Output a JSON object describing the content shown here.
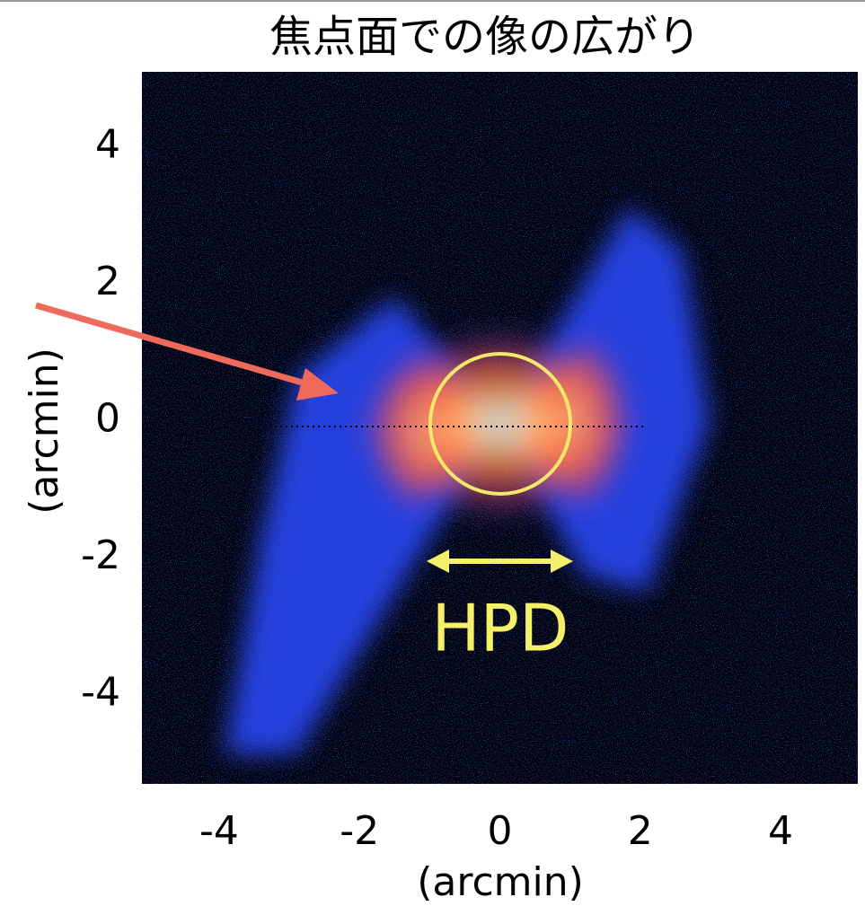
{
  "chart_data": {
    "type": "image",
    "title": "焦点面での像の広がり",
    "xlabel": "(arcmin)",
    "ylabel": "(arcmin)",
    "xlim": [
      -5.1,
      5.1
    ],
    "ylim": [
      -5.2,
      5.2
    ],
    "xticks": [
      -4,
      -2,
      0,
      2,
      4
    ],
    "yticks": [
      -4,
      -2,
      0,
      2,
      4
    ],
    "annotations": [
      "HPD"
    ]
  }
}
